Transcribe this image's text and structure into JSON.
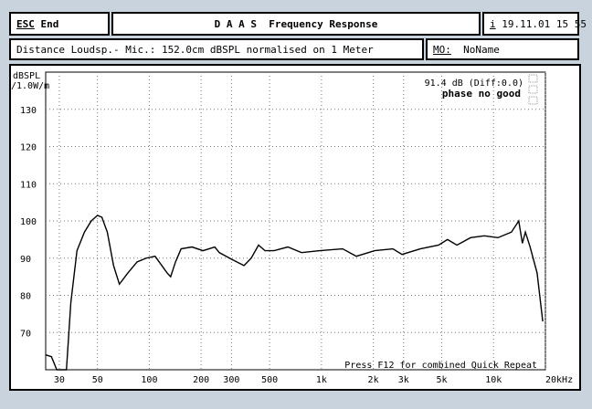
{
  "header": {
    "escape": "ESC",
    "end": "End",
    "title": "D A A S  Frequency Response",
    "info": "i",
    "datetime": "19.11.01 15 55",
    "distance": "Distance Loudsp.- Mic.: 152.0cm dBSPL normalised on 1 Meter",
    "mo_label": "MO:",
    "mo_value": "NoName"
  },
  "chart_data": {
    "type": "line",
    "y_label": "dBSPL",
    "y_unit": "/1.0W/m",
    "annotations": [
      "91.4 dB (Diff:0.0)",
      "phase no good",
      "Press F12 for combined Quick Repeat"
    ],
    "x_scale": "log",
    "grid": true,
    "xlim": [
      25,
      20000
    ],
    "ylim": [
      60,
      140
    ],
    "xticks": [
      30,
      50,
      100,
      200,
      300,
      500,
      {
        "value": 1000,
        "label": "1k"
      },
      {
        "value": 2000,
        "label": "2k"
      },
      {
        "value": 3000,
        "label": "3k"
      },
      {
        "value": 5000,
        "label": "5k"
      },
      {
        "value": 10000,
        "label": "10k"
      },
      {
        "value": 20000,
        "label": "20kHz"
      }
    ],
    "yticks": [
      70,
      80,
      90,
      100,
      110,
      120,
      130
    ],
    "x": [
      25,
      27,
      29,
      33,
      35,
      38,
      42,
      46,
      50,
      53,
      57,
      62,
      67,
      75,
      85,
      96,
      108,
      127,
      133,
      142,
      153,
      177,
      205,
      240,
      255,
      306,
      355,
      391,
      431,
      470,
      531,
      638,
      766,
      977,
      1327,
      1595,
      2037,
      2600,
      2937,
      3750,
      4788,
      5400,
      6120,
      7350,
      8830,
      10600,
      12700,
      14000,
      14700,
      15300,
      16300,
      17900,
      19300
    ],
    "series": [
      {
        "color": "#000000",
        "values": [
          64,
          63.5,
          60,
          60,
          78,
          92,
          97,
          100,
          101.5,
          101,
          97,
          88,
          83,
          86,
          89,
          90,
          90.5,
          86,
          85,
          89,
          92.5,
          93,
          92,
          93,
          91.5,
          89.5,
          88,
          90,
          93.5,
          92,
          92,
          93,
          91.5,
          92,
          92.5,
          90.5,
          92,
          92.5,
          91,
          92.5,
          93.5,
          95,
          93.5,
          95.5,
          96,
          95.5,
          97,
          100,
          94,
          97,
          93,
          86,
          73
        ]
      }
    ]
  }
}
